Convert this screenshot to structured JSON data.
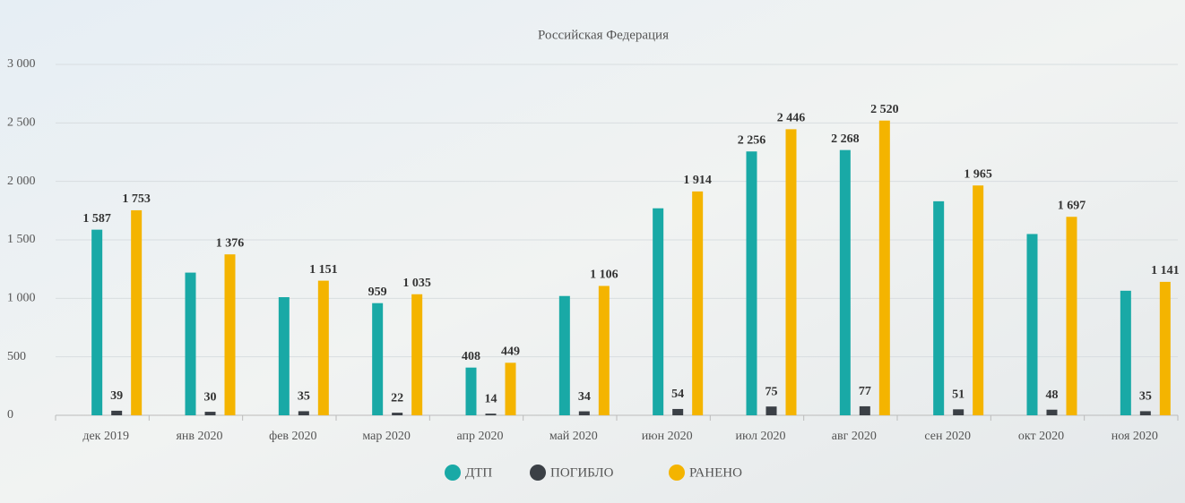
{
  "chart_data": {
    "type": "bar",
    "title": "Российская Федерация",
    "categories": [
      "дек 2019",
      "янв 2020",
      "фев 2020",
      "мар 2020",
      "апр 2020",
      "май 2020",
      "июн 2020",
      "июл 2020",
      "авг 2020",
      "сен 2020",
      "окт 2020",
      "ноя 2020"
    ],
    "series": [
      {
        "name": "ДТП",
        "color": "#19a9a6",
        "values": [
          1587,
          1220,
          1010,
          959,
          408,
          1020,
          1770,
          2256,
          2268,
          1830,
          1550,
          1065
        ],
        "value_labels": [
          "1 587",
          null,
          null,
          "959",
          "408",
          null,
          null,
          "2 256",
          "2 268",
          null,
          null,
          null
        ]
      },
      {
        "name": "ПОГИБЛО",
        "color": "#3b4046",
        "values": [
          39,
          30,
          35,
          22,
          14,
          34,
          54,
          75,
          77,
          51,
          48,
          35
        ]
      },
      {
        "name": "РАНЕНО",
        "color": "#f4b400",
        "values": [
          1753,
          1376,
          1151,
          1035,
          449,
          1106,
          1914,
          2446,
          2520,
          1965,
          1697,
          1141
        ],
        "value_labels": [
          "1 753",
          "1 376",
          "1 151",
          "1 035",
          "449",
          "1 106",
          "1 914",
          "2 446",
          "2 520",
          "1 965",
          "1 697",
          "1 141"
        ]
      }
    ],
    "ylim": [
      0,
      3000
    ],
    "yticks": [
      0,
      500,
      {
        "value": 1000,
        "label": "1 000"
      },
      {
        "value": 1500,
        "label": "1 500"
      },
      {
        "value": 2000,
        "label": "2 000"
      },
      {
        "value": 2500,
        "label": "2 500"
      },
      {
        "value": 3000,
        "label": "3 000"
      }
    ],
    "grid": true
  }
}
